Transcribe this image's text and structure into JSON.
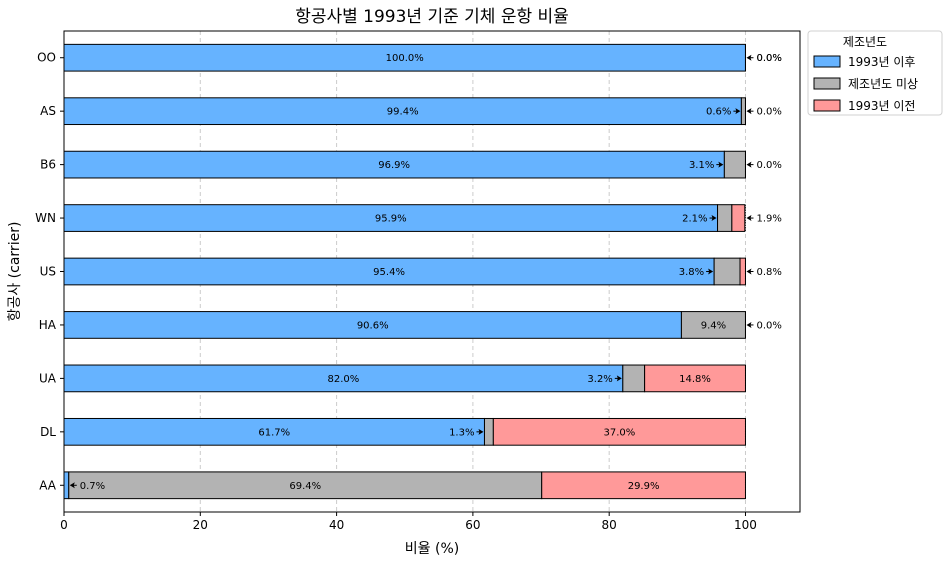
{
  "chart_data": {
    "type": "bar",
    "orientation": "horizontal",
    "stacked": true,
    "title": "항공사별 1993년 기준 기체 운항 비율",
    "xlabel": "비율 (%)",
    "ylabel": "항공사 (carrier)",
    "xlim": [
      0,
      108
    ],
    "xticks": [
      0,
      20,
      40,
      60,
      80,
      100
    ],
    "grid": "vertical dashed",
    "legend": {
      "title": "제조년도",
      "placement": "outside top-right"
    },
    "categories": [
      "OO",
      "AS",
      "B6",
      "WN",
      "US",
      "HA",
      "UA",
      "DL",
      "AA"
    ],
    "series": [
      {
        "name": "1993년 이후",
        "color": "#66b3ff",
        "values": [
          100.0,
          99.4,
          96.9,
          95.9,
          95.4,
          90.6,
          82.0,
          61.7,
          0.7
        ]
      },
      {
        "name": "제조년도 미상",
        "color": "#b3b3b3",
        "values": [
          0.0,
          0.6,
          3.1,
          2.1,
          3.8,
          9.4,
          3.2,
          1.3,
          69.4
        ]
      },
      {
        "name": "1993년 이전",
        "color": "#ff9999",
        "values": [
          0.0,
          0.0,
          0.0,
          1.9,
          0.8,
          0.0,
          14.8,
          37.0,
          29.9
        ]
      }
    ]
  }
}
